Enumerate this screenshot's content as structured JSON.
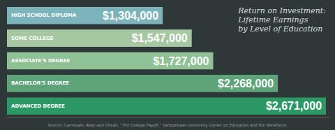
{
  "chart_data": {
    "type": "bar",
    "title": "Return on Investment:\nLifetime Earnings\nby Level of Education",
    "annotations": [
      "Source: Carnevale, Rose and Cheah, “The College Payoff,” Georgetown University Center on Education and the Workforce."
    ],
    "categories": [
      "HIGH SCHOOL DIPLOMA",
      "SOME COLLEGE",
      "ASSOCIATE'S DEGREE",
      "BACHELOR'S DEGREE",
      "ADVANCED DEGREE"
    ],
    "values": [
      1304000,
      1547000,
      1727000,
      2268000,
      2671000
    ],
    "value_labels": [
      "$1,304,000",
      "$1,547,000",
      "$1,727,000",
      "$2,268,000",
      "$2,671,000"
    ],
    "colors": [
      "#7db4bb",
      "#a6c7a2",
      "#8fc196",
      "#5da479",
      "#2c9865"
    ],
    "xlim": [
      0,
      2700000
    ],
    "orientation": "horizontal",
    "data_labels": true,
    "tick_labels": false,
    "grid": false
  }
}
